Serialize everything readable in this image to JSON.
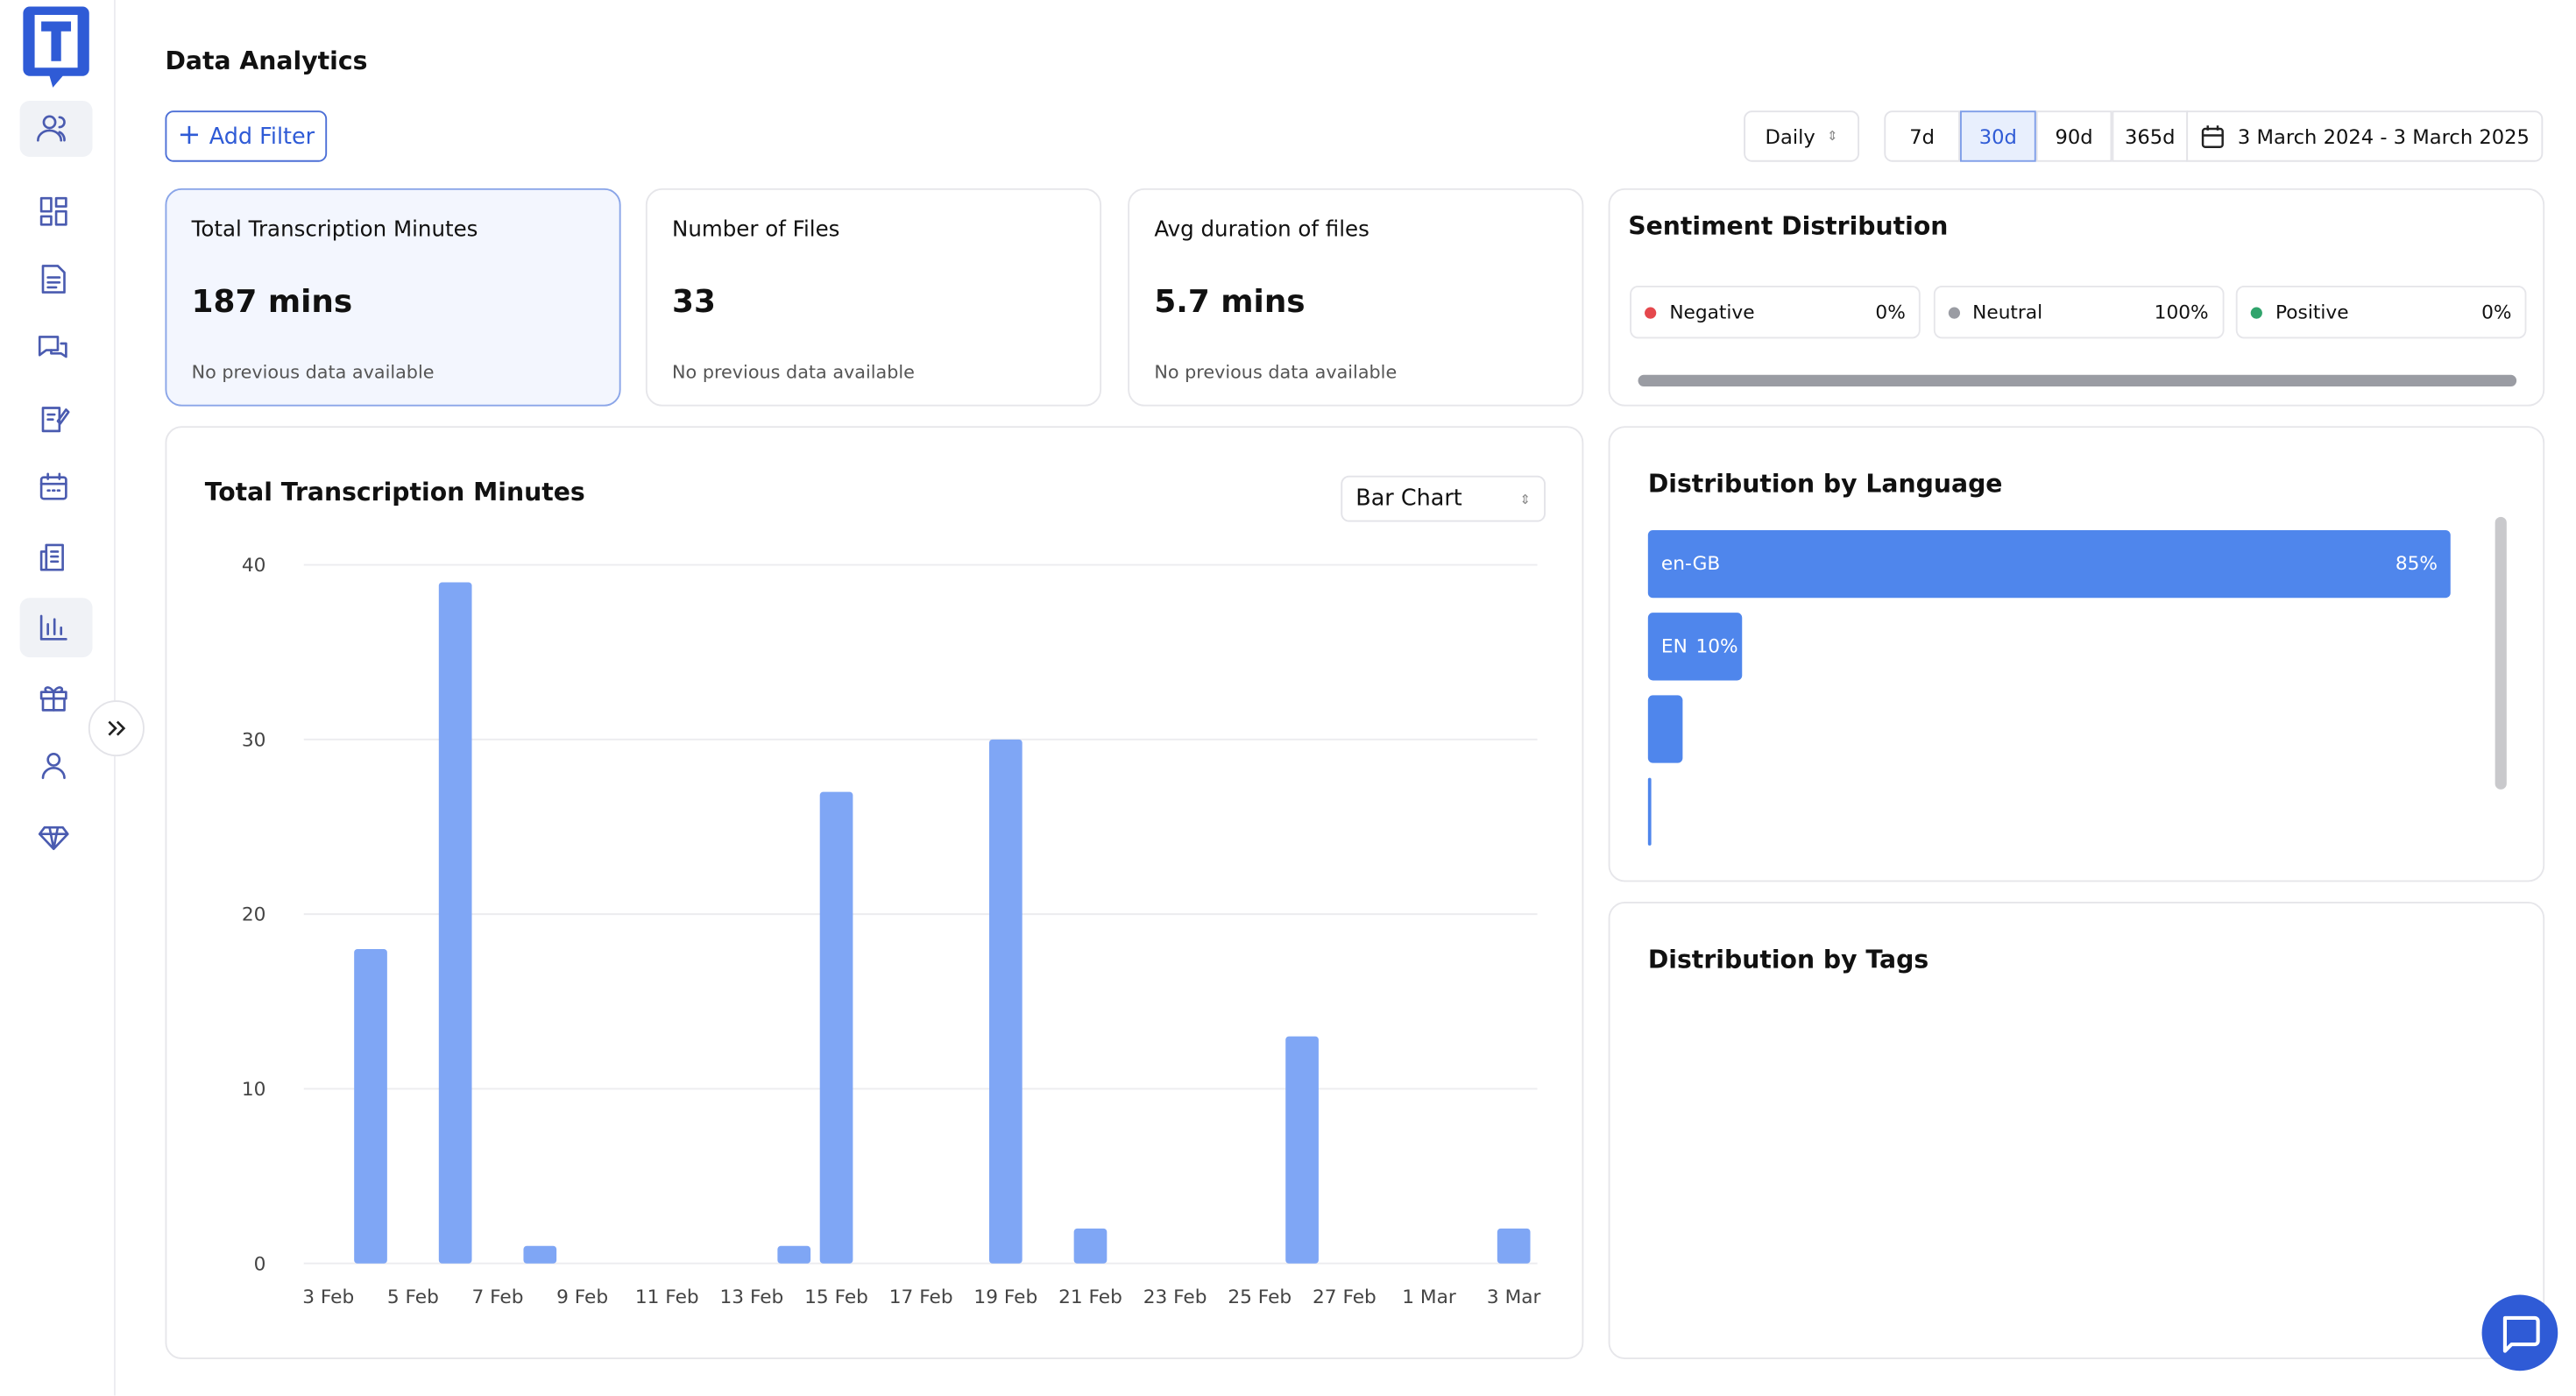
{
  "header": {
    "title": "Data Analytics"
  },
  "toolbar": {
    "add_filter": "Add Filter",
    "interval": "Daily",
    "ranges": [
      "7d",
      "30d",
      "90d",
      "365d"
    ],
    "active_range": 1,
    "date_range": "3 March 2024 - 3 March 2025"
  },
  "cards": [
    {
      "title": "Total Transcription Minutes",
      "value": "187 mins",
      "note": "No previous data available"
    },
    {
      "title": "Number of Files",
      "value": "33",
      "note": "No previous data available"
    },
    {
      "title": "Avg duration of files",
      "value": "5.7 mins",
      "note": "No previous data available"
    }
  ],
  "selected_card": 0,
  "sentiment": {
    "title": "Sentiment Distribution",
    "labels": [
      "Negative",
      "Neutral",
      "Positive"
    ],
    "values": [
      0,
      100,
      0
    ],
    "value_labels": [
      "0%",
      "100%",
      "0%"
    ],
    "colors": [
      "#e5484d",
      "#9a9ca3",
      "#30a46c"
    ]
  },
  "chart_data": {
    "type": "bar",
    "title": "Total Transcription Minutes",
    "chart_selector": "Bar Chart",
    "categories": [
      "3 Feb",
      null,
      "5 Feb",
      null,
      "7 Feb",
      null,
      "9 Feb",
      null,
      "11 Feb",
      null,
      "13 Feb",
      null,
      "15 Feb",
      null,
      "17 Feb",
      null,
      "19 Feb",
      null,
      "21 Feb",
      null,
      "23 Feb",
      null,
      "25 Feb",
      null,
      "27 Feb",
      null,
      "1 Mar",
      null,
      "3 Mar"
    ],
    "values": [
      0,
      18,
      0,
      39,
      0,
      1,
      0,
      0,
      0,
      0,
      0,
      1,
      27,
      0,
      0,
      0,
      30,
      0,
      2,
      0,
      0,
      0,
      0,
      13,
      0,
      0,
      0,
      0,
      2
    ],
    "color": "#7fa6f5",
    "ylim": [
      0,
      40
    ],
    "yticks": [
      0,
      10,
      20,
      30,
      40
    ],
    "grid": true
  },
  "language": {
    "title": "Distribution by Language",
    "labels": [
      "en-GB",
      "EN",
      null,
      null
    ],
    "values": [
      85,
      10,
      3.7,
      0.4
    ],
    "value_labels": [
      "85%",
      "10%",
      null,
      null
    ],
    "color": "#4f86ec"
  },
  "tags": {
    "title": "Distribution by Tags"
  }
}
